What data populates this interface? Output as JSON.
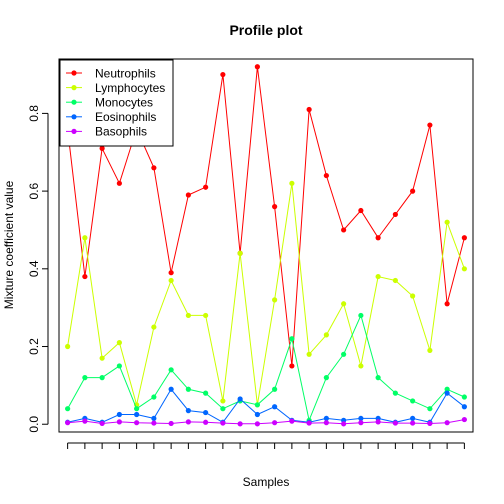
{
  "chart_data": {
    "type": "line",
    "title": "Profile plot",
    "xlabel": "Samples",
    "ylabel": "Mixture coefficient value",
    "ylim": [
      -0.02,
      0.94
    ],
    "yticks": [
      0.0,
      0.2,
      0.4,
      0.6,
      0.8
    ],
    "ytick_labels": [
      "0.0",
      "0.2",
      "0.4",
      "0.6",
      "0.8"
    ],
    "x": [
      1,
      2,
      3,
      4,
      5,
      6,
      7,
      8,
      9,
      10,
      11,
      12,
      13,
      14,
      15,
      16,
      17,
      18,
      19,
      20,
      21,
      22,
      23,
      24
    ],
    "legend_position": "top-left",
    "series": [
      {
        "name": "Neutrophils",
        "color": "#ff0000",
        "values": [
          0.76,
          0.38,
          0.71,
          0.62,
          0.76,
          0.66,
          0.39,
          0.59,
          0.61,
          0.9,
          0.44,
          0.92,
          0.56,
          0.15,
          0.81,
          0.64,
          0.5,
          0.55,
          0.48,
          0.54,
          0.6,
          0.77,
          0.31,
          0.48
        ]
      },
      {
        "name": "Lymphocytes",
        "color": "#ccff00",
        "values": [
          0.2,
          0.48,
          0.17,
          0.21,
          0.05,
          0.25,
          0.37,
          0.28,
          0.28,
          0.06,
          0.44,
          0.05,
          0.32,
          0.62,
          0.18,
          0.23,
          0.31,
          0.15,
          0.38,
          0.37,
          0.33,
          0.19,
          0.52,
          0.4
        ]
      },
      {
        "name": "Monocytes",
        "color": "#00ff66",
        "values": [
          0.04,
          0.12,
          0.12,
          0.15,
          0.04,
          0.07,
          0.14,
          0.09,
          0.08,
          0.04,
          0.06,
          0.05,
          0.09,
          0.22,
          0.01,
          0.12,
          0.18,
          0.28,
          0.12,
          0.08,
          0.06,
          0.04,
          0.09,
          0.07
        ]
      },
      {
        "name": "Eosinophils",
        "color": "#0066ff",
        "values": [
          0.005,
          0.015,
          0.005,
          0.025,
          0.025,
          0.015,
          0.09,
          0.035,
          0.03,
          0.005,
          0.065,
          0.025,
          0.045,
          0.01,
          0.005,
          0.015,
          0.01,
          0.015,
          0.015,
          0.005,
          0.015,
          0.005,
          0.08,
          0.045
        ]
      },
      {
        "name": "Basophils",
        "color": "#cc00ff",
        "values": [
          0.004,
          0.008,
          0.002,
          0.006,
          0.004,
          0.003,
          0.002,
          0.006,
          0.005,
          0.003,
          0.001,
          0.001,
          0.004,
          0.008,
          0.003,
          0.004,
          0.001,
          0.004,
          0.006,
          0.003,
          0.003,
          0.002,
          0.004,
          0.012
        ]
      }
    ]
  }
}
